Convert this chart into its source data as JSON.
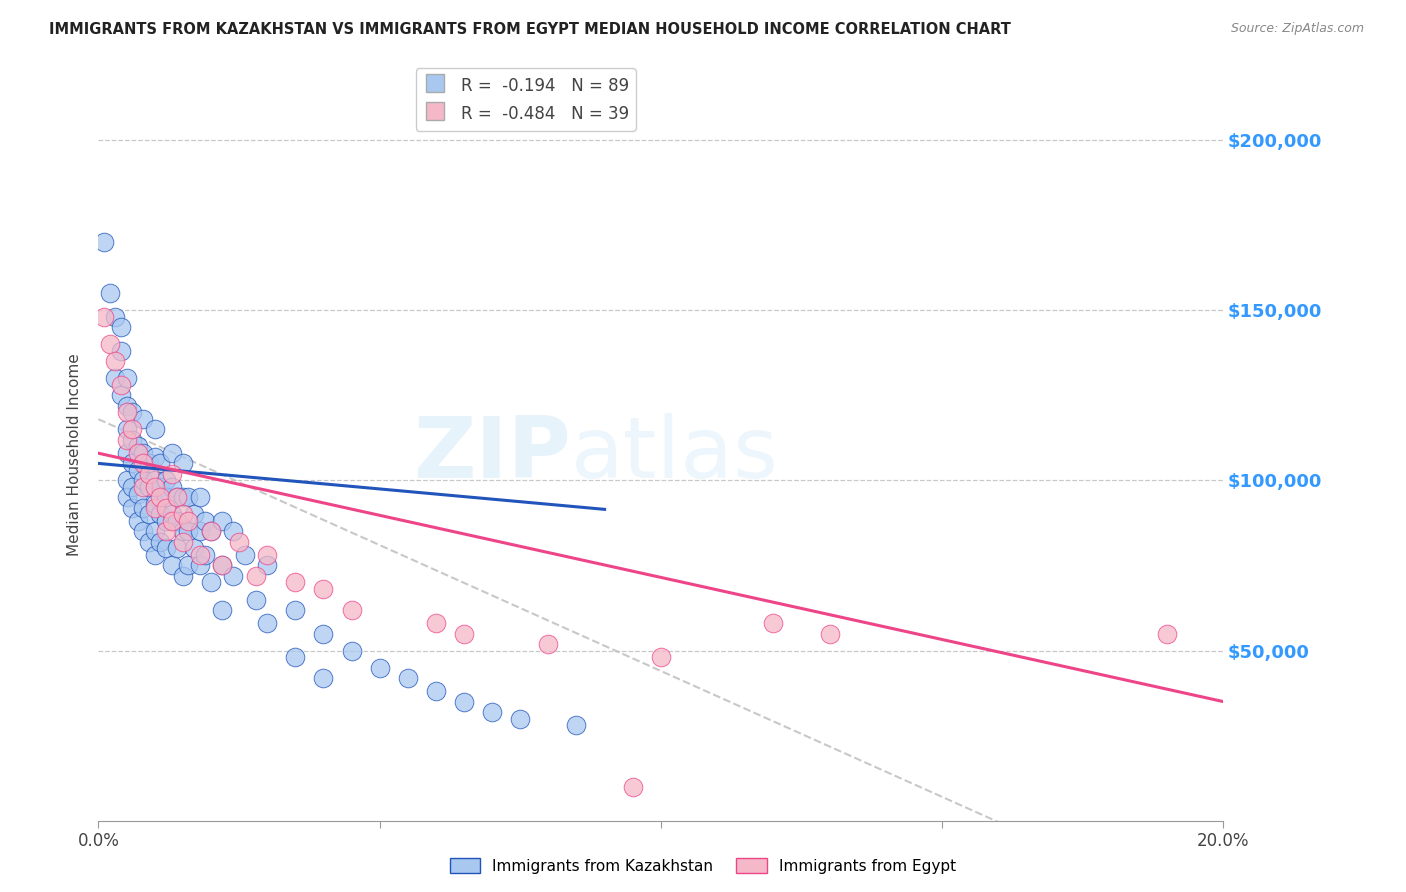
{
  "title": "IMMIGRANTS FROM KAZAKHSTAN VS IMMIGRANTS FROM EGYPT MEDIAN HOUSEHOLD INCOME CORRELATION CHART",
  "source": "Source: ZipAtlas.com",
  "ylabel": "Median Household Income",
  "xlim": [
    0.0,
    0.2
  ],
  "ylim": [
    0,
    215000
  ],
  "yticks": [
    50000,
    100000,
    150000,
    200000
  ],
  "xticks": [
    0.0,
    0.05,
    0.1,
    0.15,
    0.2
  ],
  "xtick_labels": [
    "0.0%",
    "",
    "",
    "",
    "20.0%"
  ],
  "background_color": "#ffffff",
  "grid_color": "#c8c8c8",
  "color_kaz": "#a8c8f0",
  "color_egy": "#f5b8c8",
  "trendline_kaz_color": "#2255bb",
  "trendline_egy_color": "#ee4488",
  "trendline_dashed_color": "#bbbbbb",
  "legend_r1_label": "R =  -0.194   N = 89",
  "legend_r2_label": "R =  -0.484   N = 39",
  "r_kaz": -0.194,
  "r_egy": -0.484,
  "kaz_trendline": [
    0.0,
    105000,
    0.2,
    75000
  ],
  "egy_trendline": [
    0.0,
    108000,
    0.2,
    35000
  ],
  "dashed_trendline": [
    0.0,
    118000,
    0.2,
    -30000
  ],
  "kaz_points": [
    [
      0.001,
      170000
    ],
    [
      0.002,
      155000
    ],
    [
      0.003,
      148000
    ],
    [
      0.003,
      130000
    ],
    [
      0.004,
      145000
    ],
    [
      0.004,
      138000
    ],
    [
      0.004,
      125000
    ],
    [
      0.005,
      130000
    ],
    [
      0.005,
      122000
    ],
    [
      0.005,
      115000
    ],
    [
      0.005,
      108000
    ],
    [
      0.005,
      100000
    ],
    [
      0.005,
      95000
    ],
    [
      0.006,
      120000
    ],
    [
      0.006,
      112000
    ],
    [
      0.006,
      105000
    ],
    [
      0.006,
      98000
    ],
    [
      0.006,
      92000
    ],
    [
      0.007,
      110000
    ],
    [
      0.007,
      103000
    ],
    [
      0.007,
      96000
    ],
    [
      0.007,
      88000
    ],
    [
      0.008,
      118000
    ],
    [
      0.008,
      108000
    ],
    [
      0.008,
      100000
    ],
    [
      0.008,
      92000
    ],
    [
      0.008,
      85000
    ],
    [
      0.009,
      105000
    ],
    [
      0.009,
      98000
    ],
    [
      0.009,
      90000
    ],
    [
      0.009,
      82000
    ],
    [
      0.01,
      115000
    ],
    [
      0.01,
      107000
    ],
    [
      0.01,
      100000
    ],
    [
      0.01,
      93000
    ],
    [
      0.01,
      85000
    ],
    [
      0.01,
      78000
    ],
    [
      0.011,
      105000
    ],
    [
      0.011,
      98000
    ],
    [
      0.011,
      90000
    ],
    [
      0.011,
      82000
    ],
    [
      0.012,
      100000
    ],
    [
      0.012,
      95000
    ],
    [
      0.012,
      88000
    ],
    [
      0.012,
      80000
    ],
    [
      0.013,
      108000
    ],
    [
      0.013,
      98000
    ],
    [
      0.013,
      90000
    ],
    [
      0.013,
      75000
    ],
    [
      0.014,
      95000
    ],
    [
      0.014,
      88000
    ],
    [
      0.014,
      80000
    ],
    [
      0.015,
      105000
    ],
    [
      0.015,
      95000
    ],
    [
      0.015,
      85000
    ],
    [
      0.015,
      72000
    ],
    [
      0.016,
      95000
    ],
    [
      0.016,
      85000
    ],
    [
      0.016,
      75000
    ],
    [
      0.017,
      90000
    ],
    [
      0.017,
      80000
    ],
    [
      0.018,
      95000
    ],
    [
      0.018,
      85000
    ],
    [
      0.018,
      75000
    ],
    [
      0.019,
      88000
    ],
    [
      0.019,
      78000
    ],
    [
      0.02,
      85000
    ],
    [
      0.02,
      70000
    ],
    [
      0.022,
      88000
    ],
    [
      0.022,
      75000
    ],
    [
      0.022,
      62000
    ],
    [
      0.024,
      85000
    ],
    [
      0.024,
      72000
    ],
    [
      0.026,
      78000
    ],
    [
      0.028,
      65000
    ],
    [
      0.03,
      75000
    ],
    [
      0.03,
      58000
    ],
    [
      0.035,
      62000
    ],
    [
      0.035,
      48000
    ],
    [
      0.04,
      55000
    ],
    [
      0.04,
      42000
    ],
    [
      0.045,
      50000
    ],
    [
      0.05,
      45000
    ],
    [
      0.055,
      42000
    ],
    [
      0.06,
      38000
    ],
    [
      0.065,
      35000
    ],
    [
      0.07,
      32000
    ],
    [
      0.075,
      30000
    ],
    [
      0.085,
      28000
    ]
  ],
  "egy_points": [
    [
      0.001,
      148000
    ],
    [
      0.002,
      140000
    ],
    [
      0.003,
      135000
    ],
    [
      0.004,
      128000
    ],
    [
      0.005,
      120000
    ],
    [
      0.005,
      112000
    ],
    [
      0.006,
      115000
    ],
    [
      0.007,
      108000
    ],
    [
      0.008,
      105000
    ],
    [
      0.008,
      98000
    ],
    [
      0.009,
      102000
    ],
    [
      0.01,
      98000
    ],
    [
      0.01,
      92000
    ],
    [
      0.011,
      95000
    ],
    [
      0.012,
      92000
    ],
    [
      0.012,
      85000
    ],
    [
      0.013,
      102000
    ],
    [
      0.013,
      88000
    ],
    [
      0.014,
      95000
    ],
    [
      0.015,
      90000
    ],
    [
      0.015,
      82000
    ],
    [
      0.016,
      88000
    ],
    [
      0.018,
      78000
    ],
    [
      0.02,
      85000
    ],
    [
      0.022,
      75000
    ],
    [
      0.025,
      82000
    ],
    [
      0.028,
      72000
    ],
    [
      0.03,
      78000
    ],
    [
      0.035,
      70000
    ],
    [
      0.04,
      68000
    ],
    [
      0.045,
      62000
    ],
    [
      0.06,
      58000
    ],
    [
      0.065,
      55000
    ],
    [
      0.08,
      52000
    ],
    [
      0.1,
      48000
    ],
    [
      0.12,
      58000
    ],
    [
      0.13,
      55000
    ],
    [
      0.19,
      55000
    ],
    [
      0.095,
      10000
    ]
  ]
}
